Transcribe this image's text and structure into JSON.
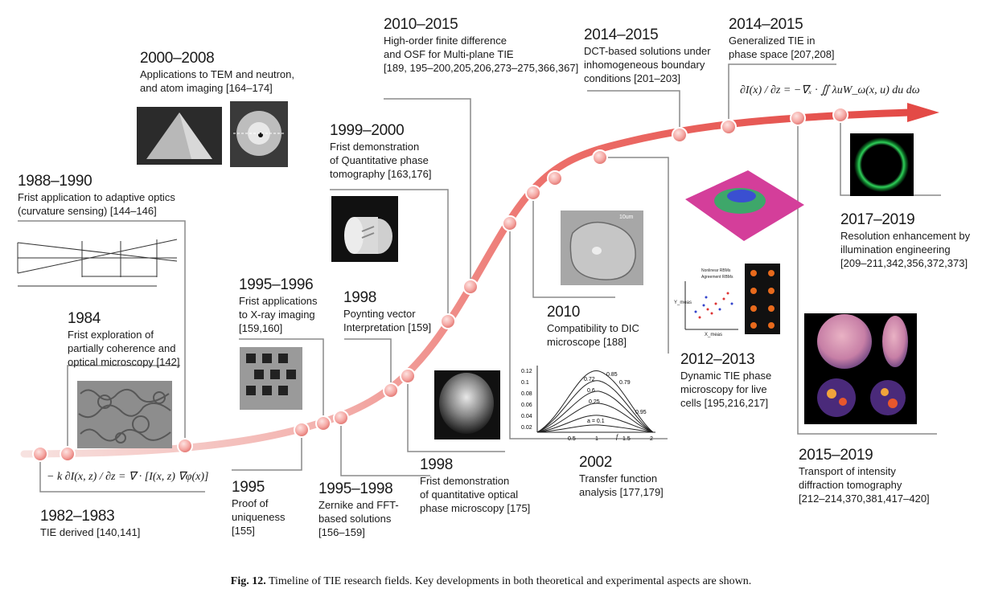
{
  "caption": {
    "label": "Fig. 12.",
    "text": "Timeline of TIE research fields. Key developments in both theoretical and experimental aspects are shown."
  },
  "milestones": [
    {
      "year": "1982–1983",
      "lines": [
        "TIE derived [140,141]"
      ]
    },
    {
      "year": "1984",
      "lines": [
        "Frist exploration of",
        "partially coherence and",
        "optical microscopy [142]"
      ]
    },
    {
      "year": "1988–1990",
      "lines": [
        "Frist application to adaptive optics",
        "(curvature sensing) [144–146]"
      ]
    },
    {
      "year": "2000–2008",
      "lines": [
        "Applications to TEM and neutron,",
        "and atom imaging [164–174]"
      ]
    },
    {
      "year": "1995",
      "lines": [
        "Proof of",
        "uniqueness",
        "[155]"
      ]
    },
    {
      "year": "1995–1996",
      "lines": [
        "Frist applications",
        "to X-ray imaging",
        "[159,160]"
      ]
    },
    {
      "year": "1995–1998",
      "lines": [
        "Zernike and FFT-",
        "based solutions",
        "[156–159]"
      ]
    },
    {
      "year": "1998",
      "lines": [
        "Poynting vector",
        "Interpretation [159]"
      ]
    },
    {
      "year": "1999–2000",
      "lines": [
        "Frist demonstration",
        "of Quantitative phase",
        "tomography [163,176]"
      ]
    },
    {
      "year": "1998",
      "lines": [
        "Frist demonstration",
        "of quantitative optical",
        "phase microscopy [175]"
      ]
    },
    {
      "year": "2010–2015",
      "lines": [
        "High-order finite difference",
        "and OSF for Multi-plane TIE",
        "[189, 195–200,205,206,273–275,366,367]"
      ]
    },
    {
      "year": "2010",
      "lines": [
        "Compatibility to DIC",
        "microscope [188]"
      ]
    },
    {
      "year": "2002",
      "lines": [
        "Transfer function",
        "analysis [177,179]"
      ]
    },
    {
      "year": "2014–2015",
      "lines": [
        "DCT-based solutions under",
        "inhomogeneous boundary",
        "conditions [201–203]"
      ]
    },
    {
      "year": "2012–2013",
      "lines": [
        "Dynamic TIE phase",
        "microscopy for live",
        "cells [195,216,217]"
      ]
    },
    {
      "year": "2014–2015",
      "lines": [
        "Generalized TIE in",
        "phase space [207,208]"
      ]
    },
    {
      "year": "2017–2019",
      "lines": [
        "Resolution enhancement by",
        "illumination engineering",
        "[209–211,342,356,372,373]"
      ]
    },
    {
      "year": "2015–2019",
      "lines": [
        "Transport of intensity",
        "diffraction tomography",
        "[212–214,370,381,417–420]"
      ]
    }
  ],
  "equations": {
    "tie_lhs": "− k ∂I(x, z) / ∂z",
    "tie_rhs": "= ∇ · [I(x, z) ∇φ(x)]",
    "gtie_lhs": "∂I(x) / ∂z",
    "gtie_rhs": "= −∇ₓ · ∬ λuW_ω(x, u) du dω"
  },
  "transfer_plot": {
    "y_ticks": [
      "0.12",
      "0.1",
      "0.08",
      "0.06",
      "0.04",
      "0.02"
    ],
    "x_ticks": [
      "0.5",
      "1",
      "1.5",
      "2"
    ],
    "x_label": "f",
    "curve_labels": [
      "0.85",
      "0.79",
      "0.72",
      "0.6",
      "0.25",
      "0.95",
      "a = 0.1"
    ]
  },
  "image_labels": {
    "dic_scale": "10um",
    "scatter_xlabel": "X_meas",
    "scatter_ylabel": "Y_meas",
    "scatter_legend": [
      "Nonlinear RBMs",
      "Agreement RBMs"
    ]
  },
  "colors": {
    "curve": "#e8504c",
    "curve_start": "#f7d6d3",
    "node_fill": "#f4a3a0",
    "leader": "#8a8a8a"
  }
}
